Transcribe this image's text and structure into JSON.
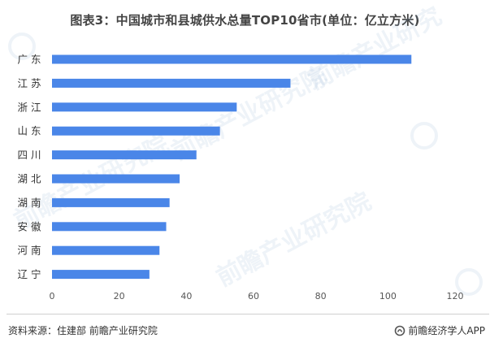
{
  "title": "图表3：中国城市和县城供水总量TOP10省市(单位：亿立方米)",
  "footer": {
    "source": "资料来源：住建部 前瞻产业研究院",
    "brand": "前瞻经济学人APP"
  },
  "watermark": {
    "text": "前瞻产业研究院",
    "color": "#A0BED8"
  },
  "colors": {
    "bar": "#4A86E8",
    "axis": "#d0d0d0",
    "text": "#333333"
  },
  "chart_data": {
    "type": "bar",
    "orientation": "horizontal",
    "categories": [
      "广 东",
      "江 苏",
      "浙 江",
      "山 东",
      "四 川",
      "湖 北",
      "湖 南",
      "安 徽",
      "河 南",
      "辽 宁"
    ],
    "values": [
      107,
      71,
      55,
      50,
      43,
      38,
      35,
      34,
      32,
      29
    ],
    "xlim": [
      0,
      120
    ],
    "xticks": [
      0,
      20,
      40,
      60,
      80,
      100,
      120
    ],
    "xlabel": "",
    "ylabel": "",
    "grid": false,
    "legend": "none"
  }
}
